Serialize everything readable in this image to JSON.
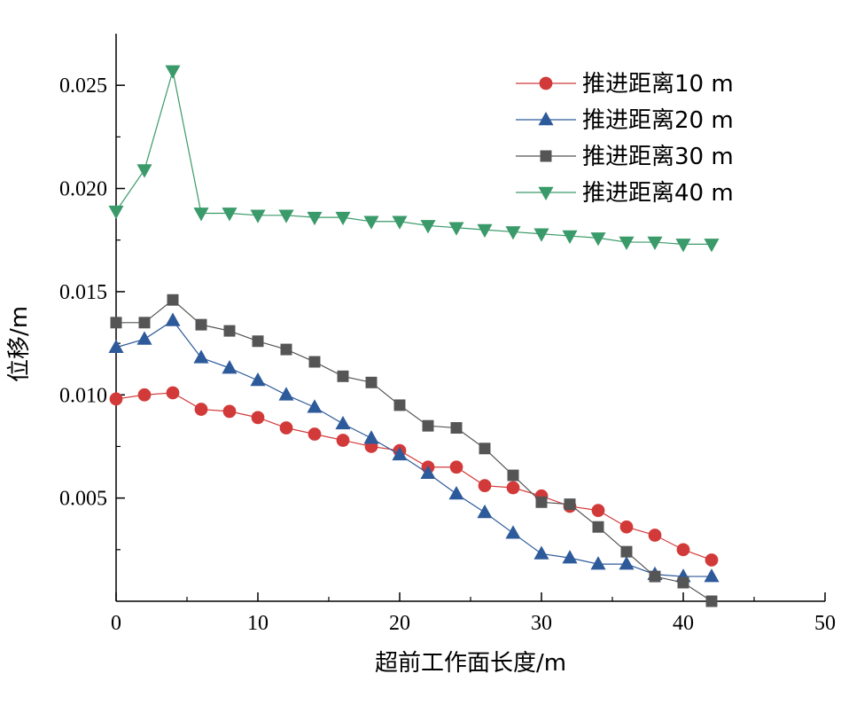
{
  "chart_data": {
    "type": "line",
    "xlabel": "超前工作面长度/m",
    "ylabel": "位移/m",
    "xlim": [
      0,
      50
    ],
    "ylim": [
      0,
      0.0275
    ],
    "xticks": [
      0,
      10,
      20,
      30,
      40,
      50
    ],
    "xtick_labels": [
      "0",
      "10",
      "20",
      "30",
      "40",
      "50"
    ],
    "yticks": [
      0.005,
      0.01,
      0.015,
      0.02,
      0.025
    ],
    "ytick_labels": [
      "0.005",
      "0.010",
      "0.015",
      "0.020",
      "0.025"
    ],
    "grid": false,
    "legend_position": "top-right",
    "x": [
      0,
      2,
      4,
      6,
      8,
      10,
      12,
      14,
      16,
      18,
      20,
      22,
      24,
      26,
      28,
      30,
      32,
      34,
      36,
      38,
      40,
      42
    ],
    "series": [
      {
        "name": "推进距离10 m",
        "color": "#d23a3a",
        "marker": "circle",
        "values": [
          0.0098,
          0.01,
          0.0101,
          0.0093,
          0.0092,
          0.0089,
          0.0084,
          0.0081,
          0.0078,
          0.0075,
          0.0073,
          0.0065,
          0.0065,
          0.0056,
          0.0055,
          0.0051,
          0.0046,
          0.0044,
          0.0036,
          0.0032,
          0.0025,
          0.002
        ]
      },
      {
        "name": "推进距离20 m",
        "color": "#2d5a9a",
        "marker": "triangle-up",
        "values": [
          0.0123,
          0.0127,
          0.0136,
          0.0118,
          0.0113,
          0.0107,
          0.01,
          0.0094,
          0.0086,
          0.0079,
          0.0071,
          0.0062,
          0.0052,
          0.0043,
          0.0033,
          0.0023,
          0.0021,
          0.0018,
          0.0018,
          0.0013,
          0.0012,
          0.0012
        ]
      },
      {
        "name": "推进距离30 m",
        "color": "#555555",
        "marker": "square",
        "values": [
          0.0135,
          0.0135,
          0.0146,
          0.0134,
          0.0131,
          0.0126,
          0.0122,
          0.0116,
          0.0109,
          0.0106,
          0.0095,
          0.0085,
          0.0084,
          0.0074,
          0.0061,
          0.0048,
          0.0047,
          0.0036,
          0.0024,
          0.0012,
          0.0009,
          0.0
        ]
      },
      {
        "name": "推进距离40 m",
        "color": "#3a9a6a",
        "marker": "triangle-down",
        "values": [
          0.0189,
          0.0209,
          0.0257,
          0.0188,
          0.0188,
          0.0187,
          0.0187,
          0.0186,
          0.0186,
          0.0184,
          0.0184,
          0.0182,
          0.0181,
          0.018,
          0.0179,
          0.0178,
          0.0177,
          0.0176,
          0.0174,
          0.0174,
          0.0173,
          0.0173
        ]
      }
    ]
  }
}
